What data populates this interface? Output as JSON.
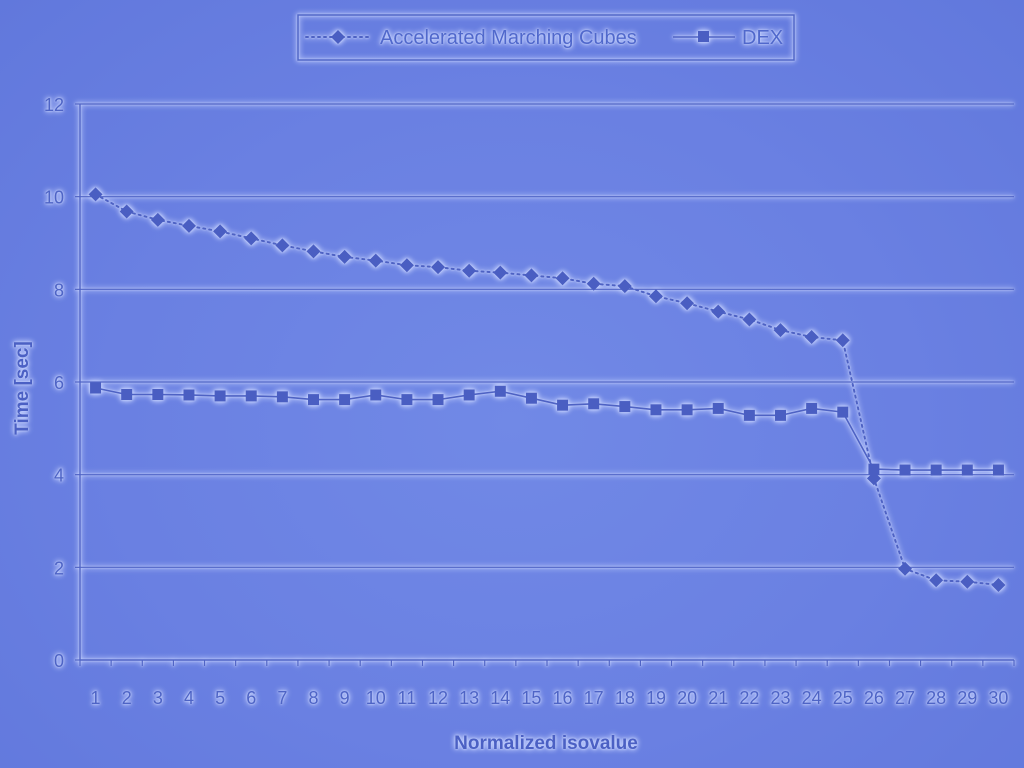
{
  "chart_data": {
    "type": "line",
    "title": "",
    "xlabel": "Normalized isovalue",
    "ylabel": "Time [sec]",
    "ylim": [
      0,
      12
    ],
    "yticks": [
      "0",
      "2",
      "4",
      "6",
      "8",
      "10",
      "12"
    ],
    "categories": [
      "1",
      "2",
      "3",
      "4",
      "5",
      "6",
      "7",
      "8",
      "9",
      "10",
      "11",
      "12",
      "13",
      "14",
      "15",
      "16",
      "17",
      "18",
      "19",
      "20",
      "21",
      "22",
      "23",
      "24",
      "25",
      "26",
      "27",
      "28",
      "29",
      "30"
    ],
    "grid": true,
    "legend_position": "top",
    "series": [
      {
        "name": "Accelerated Marching Cubes",
        "marker": "diamond",
        "line_style": "dotted",
        "values": [
          10.05,
          9.68,
          9.5,
          9.37,
          9.25,
          9.1,
          8.95,
          8.82,
          8.7,
          8.62,
          8.52,
          8.48,
          8.4,
          8.36,
          8.3,
          8.24,
          8.12,
          8.07,
          7.85,
          7.7,
          7.52,
          7.35,
          7.12,
          6.97,
          6.9,
          3.92,
          1.97,
          1.72,
          1.69,
          1.62
        ]
      },
      {
        "name": "DEX",
        "marker": "square",
        "line_style": "solid",
        "values": [
          5.87,
          5.73,
          5.73,
          5.72,
          5.7,
          5.7,
          5.68,
          5.62,
          5.62,
          5.72,
          5.62,
          5.62,
          5.72,
          5.8,
          5.65,
          5.5,
          5.53,
          5.47,
          5.4,
          5.4,
          5.43,
          5.28,
          5.28,
          5.43,
          5.35,
          4.12,
          4.1,
          4.1,
          4.1,
          4.1
        ]
      }
    ],
    "colors": {
      "line": "#4e62c4",
      "marker": "#4a5ec2",
      "grid": "#5064c6",
      "glow": "#c8d4ff"
    }
  }
}
